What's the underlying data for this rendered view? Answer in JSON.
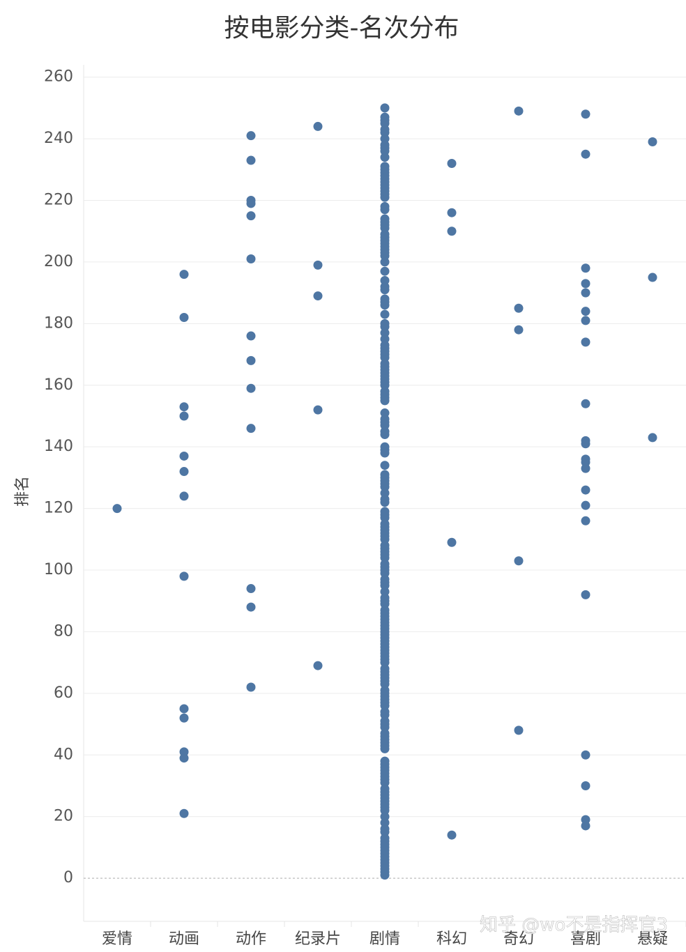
{
  "chart_data": {
    "type": "strip",
    "title": "按电影分类-名次分布",
    "y_label": "排名",
    "watermark": "知乎 @wo不是指挥官3",
    "color": "#4e76a3",
    "grid": true,
    "categories": [
      "爱情",
      "动画",
      "动作",
      "纪录片",
      "剧情",
      "科幻",
      "奇幻",
      "喜剧",
      "悬疑"
    ],
    "values": [
      [
        120
      ],
      [
        196,
        182,
        153,
        150,
        137,
        132,
        124,
        98,
        55,
        52,
        41,
        39,
        21
      ],
      [
        241,
        233,
        220,
        219,
        215,
        201,
        176,
        168,
        159,
        146,
        94,
        88,
        62
      ],
      [
        244,
        199,
        189,
        152,
        69
      ],
      [
        1,
        2,
        3,
        4,
        5,
        6,
        7,
        8,
        9,
        10,
        11,
        12,
        13,
        15,
        16,
        18,
        20,
        22,
        23,
        24,
        25,
        26,
        27,
        28,
        29,
        31,
        32,
        33,
        34,
        35,
        36,
        37,
        38,
        42,
        43,
        44,
        45,
        46,
        47,
        49,
        50,
        51,
        53,
        54,
        56,
        57,
        58,
        59,
        60,
        61,
        63,
        64,
        65,
        66,
        67,
        68,
        70,
        71,
        72,
        73,
        74,
        75,
        76,
        77,
        78,
        79,
        80,
        81,
        82,
        83,
        84,
        85,
        86,
        87,
        89,
        90,
        91,
        93,
        95,
        96,
        97,
        99,
        100,
        101,
        102,
        104,
        105,
        106,
        107,
        108,
        110,
        111,
        112,
        113,
        114,
        115,
        117,
        118,
        119,
        122,
        123,
        125,
        127,
        128,
        129,
        130,
        131,
        134,
        138,
        139,
        140,
        144,
        145,
        147,
        148,
        149,
        151,
        155,
        156,
        157,
        158,
        160,
        161,
        162,
        163,
        164,
        165,
        166,
        167,
        169,
        170,
        171,
        172,
        173,
        175,
        177,
        179,
        180,
        183,
        186,
        187,
        188,
        191,
        192,
        194,
        197,
        200,
        202,
        203,
        204,
        205,
        206,
        207,
        208,
        209,
        211,
        212,
        213,
        214,
        217,
        218,
        221,
        222,
        223,
        224,
        225,
        226,
        227,
        228,
        229,
        230,
        231,
        234,
        236,
        237,
        238,
        240,
        242,
        243,
        245,
        246,
        247,
        250
      ],
      [
        232,
        216,
        210,
        109,
        14
      ],
      [
        249,
        185,
        178,
        103,
        48
      ],
      [
        248,
        235,
        198,
        193,
        190,
        184,
        181,
        174,
        154,
        142,
        141,
        136,
        135,
        133,
        126,
        121,
        116,
        92,
        40,
        30,
        19,
        17
      ],
      [
        239,
        195,
        143
      ]
    ],
    "ylim": [
      -14,
      264
    ],
    "yticks": [
      0,
      20,
      40,
      60,
      80,
      100,
      120,
      140,
      160,
      180,
      200,
      220,
      240,
      260
    ]
  }
}
